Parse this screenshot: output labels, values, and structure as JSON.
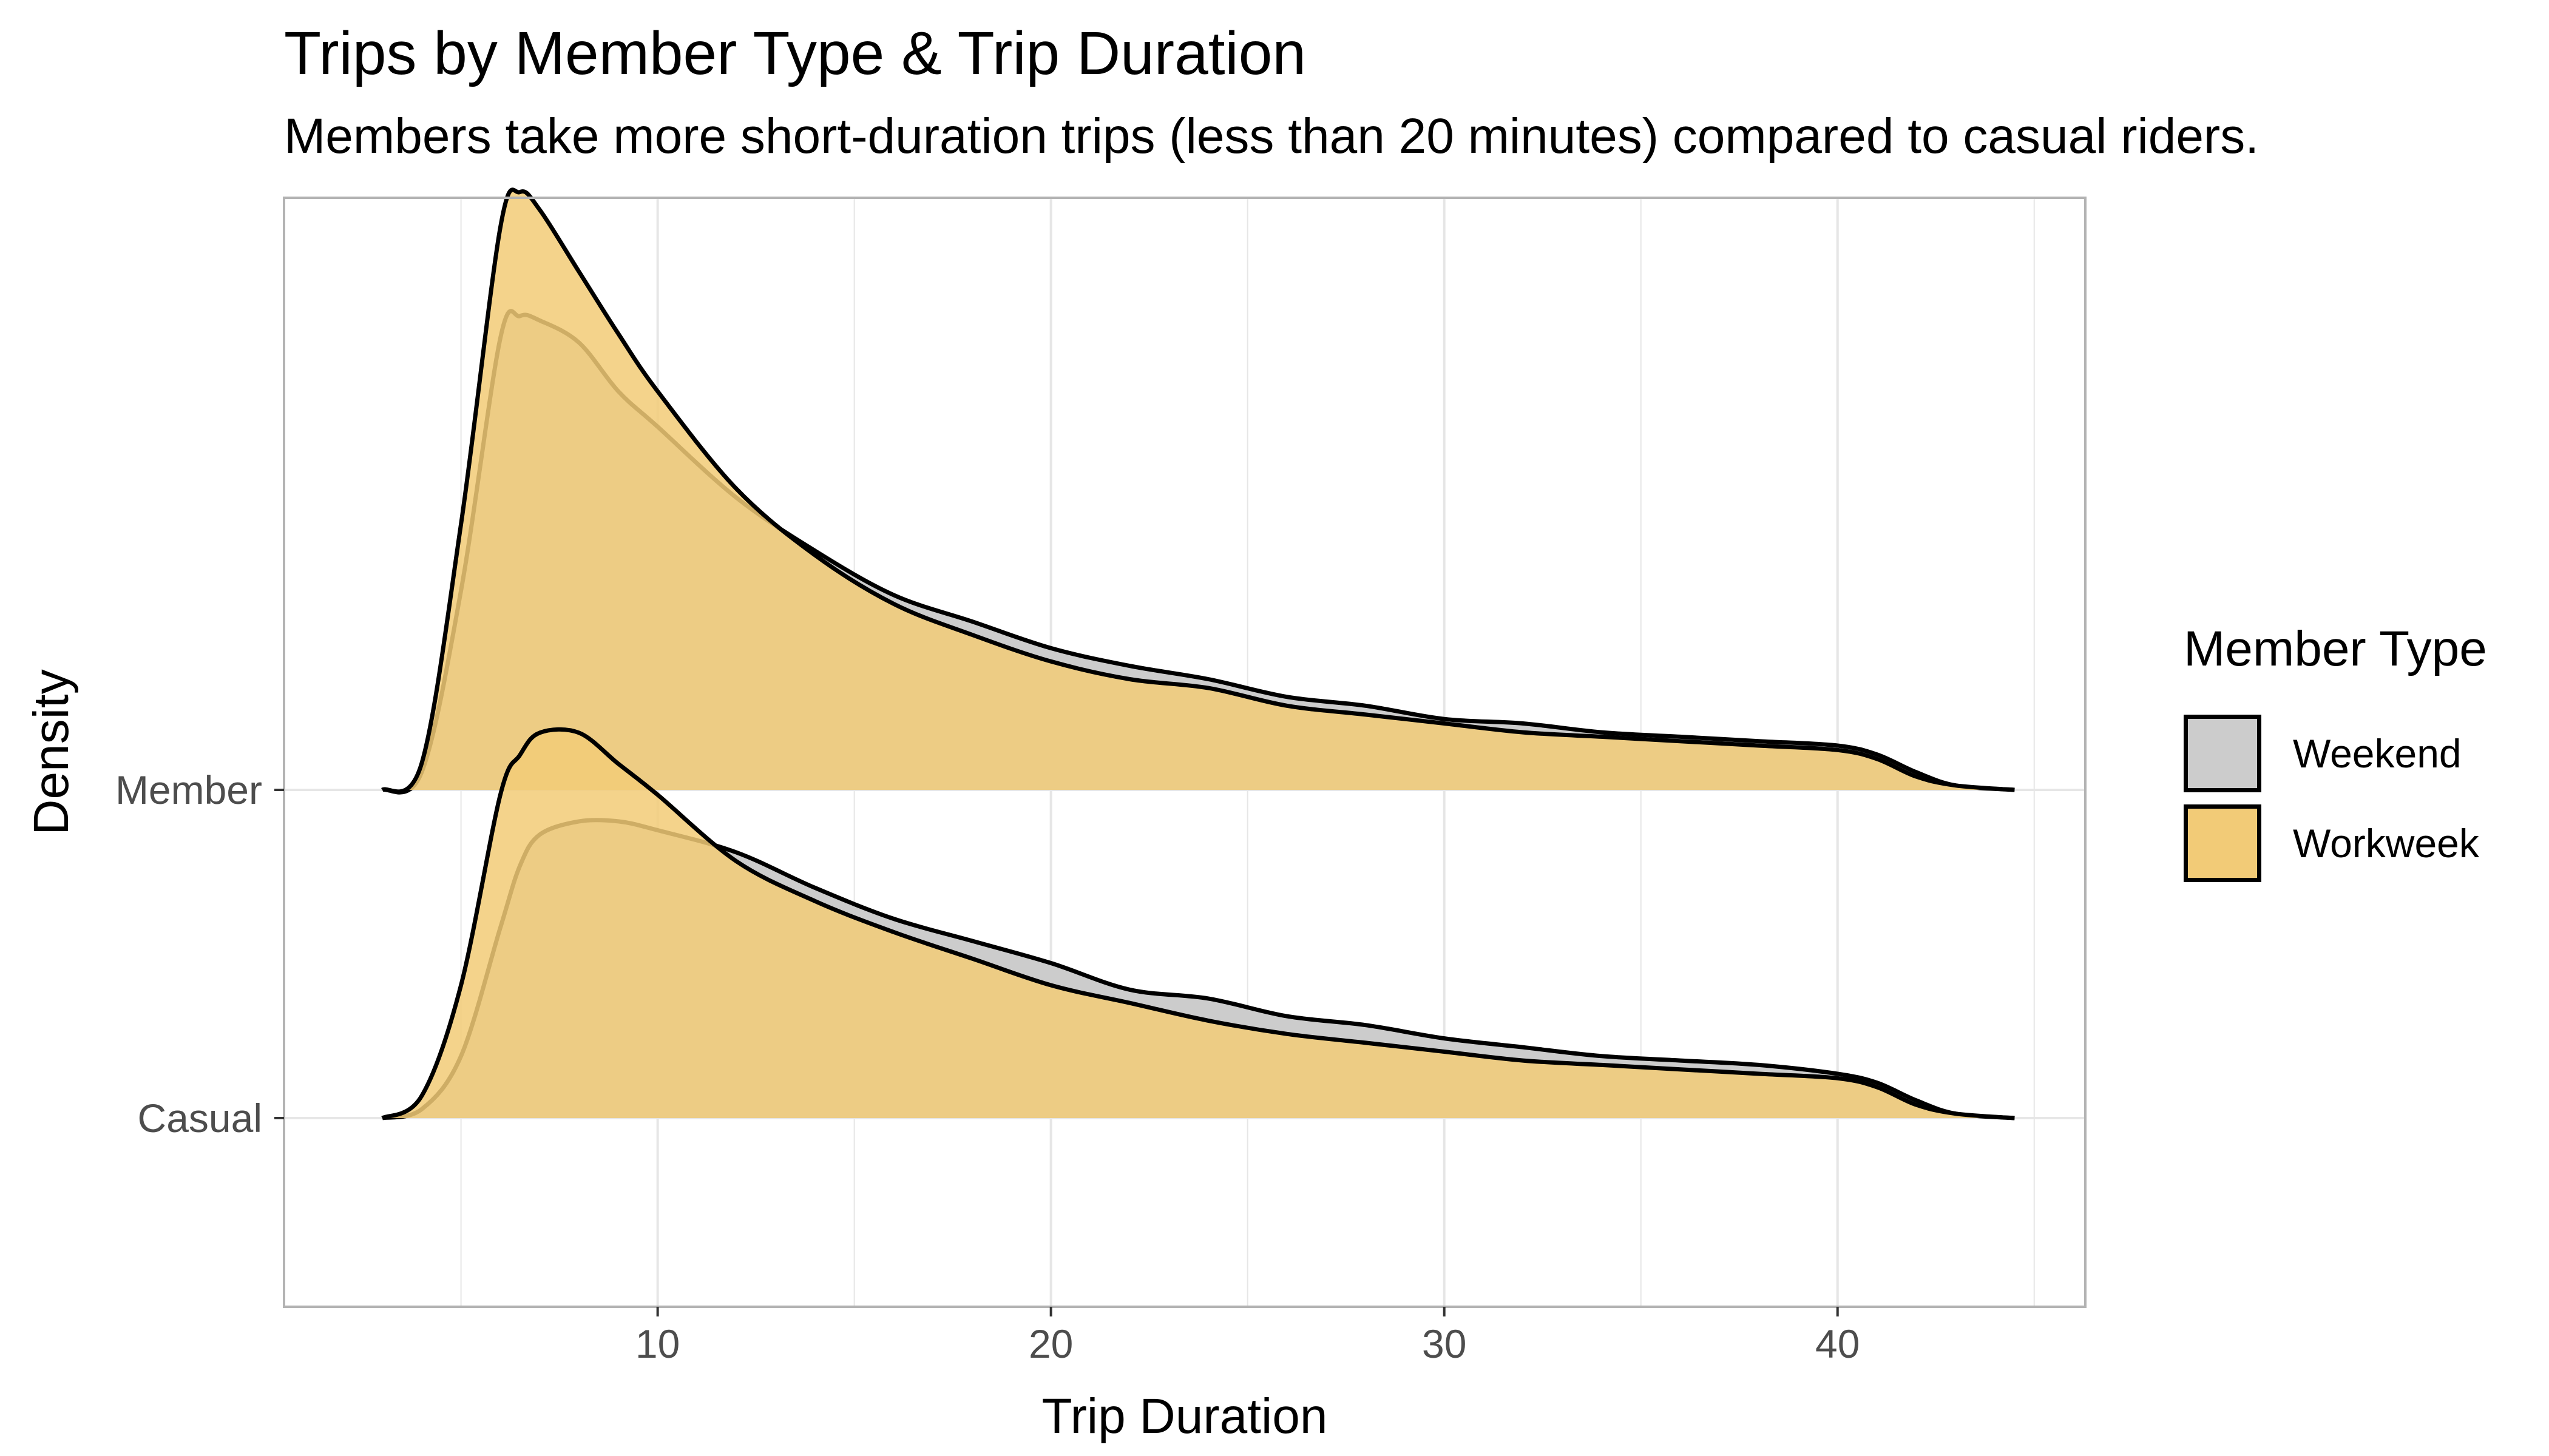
{
  "chart_data": {
    "type": "area",
    "subtype": "ridgeline-density",
    "title": "Trips by Member Type & Trip Duration",
    "subtitle": "Members take more short-duration trips (less than 20 minutes) compared to casual riders.",
    "xlabel": "Trip Duration",
    "ylabel": "Density",
    "xlim": [
      0.5,
      46.3
    ],
    "x_ticks": [
      10,
      20,
      30,
      40
    ],
    "x_tick_labels": [
      "10",
      "20",
      "30",
      "40"
    ],
    "ridges": [
      "Casual",
      "Member"
    ],
    "grid": true,
    "legend": {
      "title": "Member Type",
      "position": "right"
    },
    "colors": {
      "Weekend": "#cccccc",
      "Workweek": "#f2cb77",
      "outline": "#000000",
      "grid": "#e6e6e6"
    },
    "x": [
      3,
      4,
      5,
      6,
      6.5,
      7,
      8,
      9,
      10,
      12,
      14,
      16,
      18,
      20,
      22,
      24,
      26,
      28,
      30,
      32,
      34,
      36,
      38,
      40,
      41,
      42,
      43,
      44.5
    ],
    "series": [
      {
        "name": "Weekend",
        "ridge": "Casual",
        "values": [
          0.0,
          0.02,
          0.14,
          0.43,
          0.57,
          0.64,
          0.67,
          0.67,
          0.65,
          0.6,
          0.52,
          0.45,
          0.4,
          0.35,
          0.29,
          0.27,
          0.23,
          0.21,
          0.18,
          0.16,
          0.14,
          0.13,
          0.12,
          0.1,
          0.08,
          0.04,
          0.01,
          0.0
        ]
      },
      {
        "name": "Workweek",
        "ridge": "Casual",
        "values": [
          0.0,
          0.05,
          0.3,
          0.73,
          0.82,
          0.87,
          0.87,
          0.8,
          0.73,
          0.58,
          0.49,
          0.42,
          0.36,
          0.3,
          0.26,
          0.22,
          0.19,
          0.17,
          0.15,
          0.13,
          0.12,
          0.11,
          0.1,
          0.09,
          0.07,
          0.03,
          0.01,
          0.0
        ]
      },
      {
        "name": "Weekend",
        "ridge": "Member",
        "values": [
          0.0,
          0.04,
          0.45,
          1.02,
          1.07,
          1.06,
          1.01,
          0.9,
          0.82,
          0.66,
          0.54,
          0.44,
          0.38,
          0.32,
          0.28,
          0.25,
          0.21,
          0.19,
          0.16,
          0.15,
          0.13,
          0.12,
          0.11,
          0.1,
          0.08,
          0.04,
          0.01,
          0.0
        ]
      },
      {
        "name": "Workweek",
        "ridge": "Member",
        "values": [
          0.0,
          0.06,
          0.6,
          1.27,
          1.35,
          1.31,
          1.17,
          1.03,
          0.9,
          0.68,
          0.53,
          0.42,
          0.35,
          0.29,
          0.25,
          0.23,
          0.19,
          0.17,
          0.15,
          0.13,
          0.12,
          0.11,
          0.1,
          0.09,
          0.07,
          0.03,
          0.01,
          0.0
        ]
      }
    ]
  }
}
